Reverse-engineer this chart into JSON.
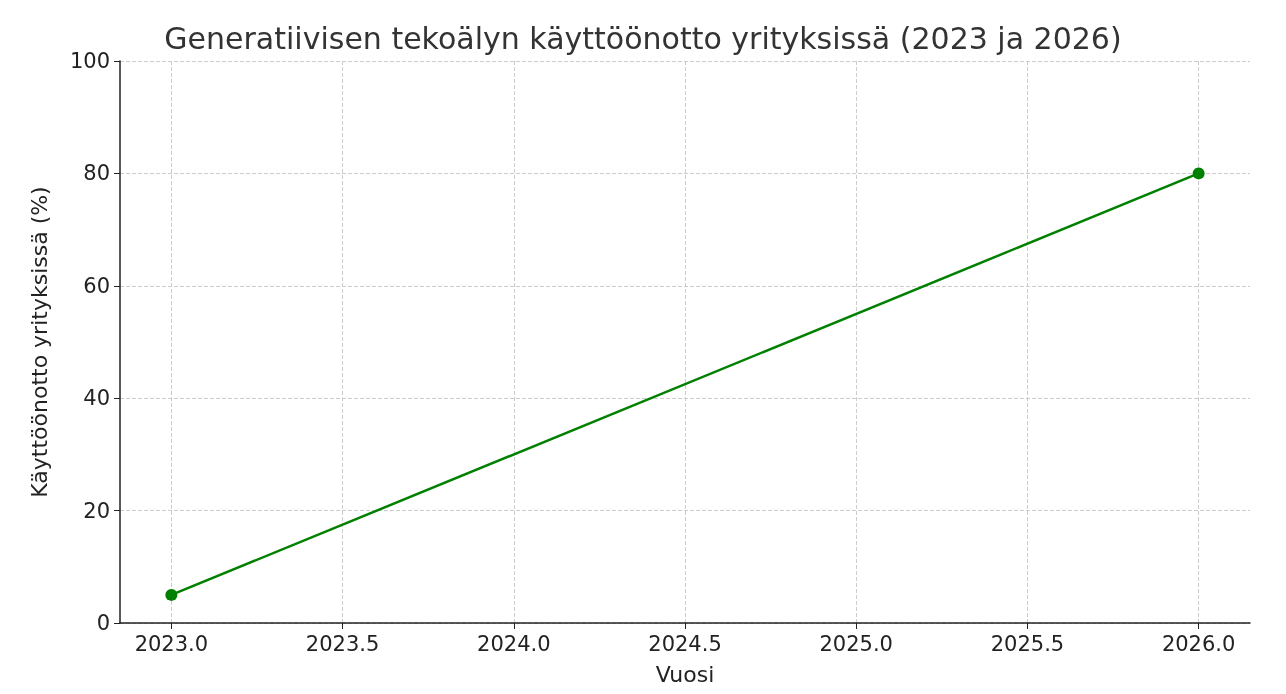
{
  "chart_data": {
    "type": "line",
    "title": "Generatiivisen tekoälyn käyttöönotto yrityksissä (2023 ja 2026)",
    "xlabel": "Vuosi",
    "ylabel": "Käyttöönotto yrityksissä (%)",
    "x": [
      2023,
      2026
    ],
    "series": [
      {
        "color": "#008000",
        "values": [
          5,
          80
        ]
      }
    ],
    "xlim": [
      2022.85,
      2026.15
    ],
    "xticks": [
      {
        "value": 2023,
        "label": "2023.0"
      },
      {
        "value": 2023.5,
        "label": "2023.5"
      },
      {
        "value": 2024,
        "label": "2024.0"
      },
      {
        "value": 2024.5,
        "label": "2024.5"
      },
      {
        "value": 2025,
        "label": "2025.0"
      },
      {
        "value": 2025.5,
        "label": "2025.5"
      },
      {
        "value": 2026,
        "label": "2026.0"
      }
    ],
    "ylim": [
      0,
      100
    ],
    "yticks": [
      0,
      20,
      40,
      60,
      80,
      100
    ],
    "grid": true,
    "marker": "circle",
    "line_style": "solid"
  }
}
